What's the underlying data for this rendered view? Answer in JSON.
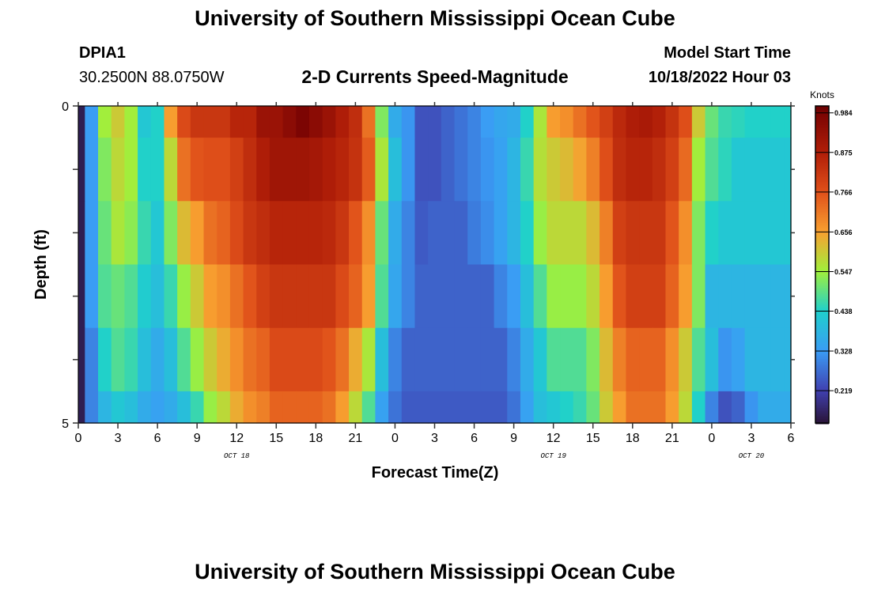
{
  "header": {
    "title": "University of Southern Mississippi Ocean Cube",
    "station_id": "DPIA1",
    "station_coords": "30.2500N  88.0750W",
    "plot_title": "2-D Currents Speed-Magnitude",
    "model_start_label": "Model Start Time",
    "model_start_value": "10/18/2022 Hour 03"
  },
  "footer": {
    "next_title": "University of Southern Mississippi Ocean Cube"
  },
  "colors": {
    "scale": [
      {
        "v": 0.13,
        "c": "#2a1438"
      },
      {
        "v": 0.219,
        "c": "#4040b0"
      },
      {
        "v": 0.328,
        "c": "#3a9cf5"
      },
      {
        "v": 0.438,
        "c": "#1fd0cc"
      },
      {
        "v": 0.547,
        "c": "#a0f03c"
      },
      {
        "v": 0.656,
        "c": "#f8a030"
      },
      {
        "v": 0.766,
        "c": "#e0501a"
      },
      {
        "v": 0.875,
        "c": "#b01e08"
      },
      {
        "v": 0.984,
        "c": "#7a0403"
      },
      {
        "v": 1.003,
        "c": "#6a0202"
      }
    ]
  },
  "chart_data": {
    "type": "heatmap",
    "title": "2-D Currents Speed-Magnitude",
    "xlabel": "Forecast Time(Z)",
    "ylabel": "Depth (ft)",
    "xlim": [
      0,
      54
    ],
    "ylim": [
      0,
      5
    ],
    "x_units": "hours from 10/18 00Z",
    "x_tick_values": [
      0,
      3,
      6,
      9,
      12,
      15,
      18,
      21,
      24,
      27,
      30,
      33,
      36,
      39,
      42,
      45,
      48,
      51,
      54
    ],
    "x_tick_labels": [
      "0",
      "3",
      "6",
      "9",
      "12",
      "15",
      "18",
      "21",
      "0",
      "3",
      "6",
      "9",
      "12",
      "15",
      "18",
      "21",
      "0",
      "3",
      "6"
    ],
    "date_labels": [
      {
        "text": "OCT 18",
        "at_hour": 12
      },
      {
        "text": "OCT 19",
        "at_hour": 36
      },
      {
        "text": "OCT 20",
        "at_hour": 51
      }
    ],
    "y_tick_values": [
      0,
      1,
      2,
      3,
      4,
      5
    ],
    "y_tick_labels": [
      "0",
      "",
      "",
      "",
      "",
      "5"
    ],
    "colorbar": {
      "label": "Knots",
      "range": [
        0.13,
        1.003
      ],
      "ticks": [
        0.984,
        0.875,
        0.766,
        0.656,
        0.547,
        0.438,
        0.328,
        0.219
      ],
      "tick_labels": [
        "0.984",
        "0.875",
        "0.766",
        "0.656",
        "0.547",
        "0.438",
        "0.328",
        "0.219"
      ]
    },
    "depths": [
      0,
      1,
      2,
      3,
      4,
      5
    ],
    "hours": [
      0,
      1,
      2,
      3,
      4,
      5,
      6,
      7,
      8,
      9,
      10,
      11,
      12,
      13,
      14,
      15,
      16,
      17,
      18,
      19,
      20,
      21,
      22,
      23,
      24,
      25,
      26,
      27,
      28,
      29,
      30,
      31,
      32,
      33,
      34,
      35,
      36,
      37,
      38,
      39,
      40,
      41,
      42,
      43,
      44,
      45,
      46,
      47,
      48,
      49,
      50,
      51,
      52,
      53,
      54
    ],
    "values": [
      [
        0.15,
        0.33,
        0.55,
        0.6,
        0.55,
        0.42,
        0.44,
        0.66,
        0.78,
        0.82,
        0.82,
        0.82,
        0.86,
        0.86,
        0.92,
        0.92,
        0.95,
        0.98,
        0.95,
        0.92,
        0.88,
        0.84,
        0.72,
        0.52,
        0.36,
        0.32,
        0.24,
        0.24,
        0.26,
        0.28,
        0.3,
        0.33,
        0.35,
        0.36,
        0.44,
        0.56,
        0.66,
        0.68,
        0.72,
        0.76,
        0.8,
        0.85,
        0.88,
        0.89,
        0.87,
        0.83,
        0.77,
        0.6,
        0.5,
        0.46,
        0.45,
        0.44,
        0.44,
        0.44,
        0.44
      ],
      [
        0.15,
        0.33,
        0.52,
        0.58,
        0.55,
        0.44,
        0.44,
        0.58,
        0.72,
        0.76,
        0.77,
        0.77,
        0.8,
        0.84,
        0.88,
        0.91,
        0.91,
        0.91,
        0.9,
        0.88,
        0.86,
        0.83,
        0.75,
        0.56,
        0.4,
        0.32,
        0.24,
        0.24,
        0.26,
        0.28,
        0.3,
        0.32,
        0.34,
        0.38,
        0.46,
        0.57,
        0.6,
        0.62,
        0.65,
        0.7,
        0.77,
        0.84,
        0.86,
        0.86,
        0.84,
        0.8,
        0.73,
        0.55,
        0.48,
        0.45,
        0.42,
        0.42,
        0.42,
        0.42,
        0.42
      ],
      [
        0.15,
        0.33,
        0.5,
        0.56,
        0.53,
        0.46,
        0.42,
        0.52,
        0.62,
        0.66,
        0.72,
        0.74,
        0.78,
        0.82,
        0.84,
        0.86,
        0.86,
        0.86,
        0.86,
        0.85,
        0.82,
        0.76,
        0.68,
        0.5,
        0.36,
        0.3,
        0.25,
        0.26,
        0.26,
        0.26,
        0.29,
        0.31,
        0.34,
        0.38,
        0.44,
        0.54,
        0.58,
        0.58,
        0.58,
        0.62,
        0.7,
        0.8,
        0.82,
        0.82,
        0.82,
        0.76,
        0.68,
        0.52,
        0.44,
        0.42,
        0.42,
        0.42,
        0.42,
        0.42,
        0.42
      ],
      [
        0.15,
        0.33,
        0.48,
        0.5,
        0.48,
        0.43,
        0.4,
        0.46,
        0.54,
        0.6,
        0.66,
        0.68,
        0.72,
        0.76,
        0.8,
        0.82,
        0.82,
        0.82,
        0.82,
        0.82,
        0.78,
        0.74,
        0.66,
        0.48,
        0.35,
        0.3,
        0.26,
        0.26,
        0.26,
        0.26,
        0.26,
        0.26,
        0.3,
        0.33,
        0.4,
        0.48,
        0.54,
        0.54,
        0.54,
        0.58,
        0.66,
        0.76,
        0.8,
        0.8,
        0.8,
        0.74,
        0.66,
        0.52,
        0.38,
        0.38,
        0.38,
        0.38,
        0.38,
        0.38,
        0.38
      ],
      [
        0.15,
        0.3,
        0.44,
        0.48,
        0.46,
        0.4,
        0.36,
        0.4,
        0.48,
        0.54,
        0.6,
        0.64,
        0.68,
        0.72,
        0.74,
        0.78,
        0.78,
        0.78,
        0.78,
        0.76,
        0.72,
        0.64,
        0.56,
        0.4,
        0.3,
        0.26,
        0.26,
        0.26,
        0.26,
        0.26,
        0.26,
        0.26,
        0.26,
        0.3,
        0.36,
        0.42,
        0.48,
        0.48,
        0.48,
        0.52,
        0.62,
        0.7,
        0.74,
        0.74,
        0.74,
        0.68,
        0.6,
        0.48,
        0.4,
        0.32,
        0.34,
        0.38,
        0.38,
        0.38,
        0.38
      ],
      [
        0.15,
        0.3,
        0.38,
        0.42,
        0.4,
        0.36,
        0.34,
        0.36,
        0.4,
        0.46,
        0.54,
        0.58,
        0.64,
        0.68,
        0.7,
        0.74,
        0.74,
        0.74,
        0.74,
        0.72,
        0.66,
        0.58,
        0.48,
        0.34,
        0.28,
        0.25,
        0.25,
        0.25,
        0.25,
        0.25,
        0.25,
        0.25,
        0.25,
        0.28,
        0.34,
        0.4,
        0.42,
        0.44,
        0.46,
        0.5,
        0.6,
        0.66,
        0.72,
        0.72,
        0.72,
        0.66,
        0.58,
        0.44,
        0.3,
        0.24,
        0.26,
        0.32,
        0.36,
        0.36,
        0.36
      ]
    ]
  }
}
